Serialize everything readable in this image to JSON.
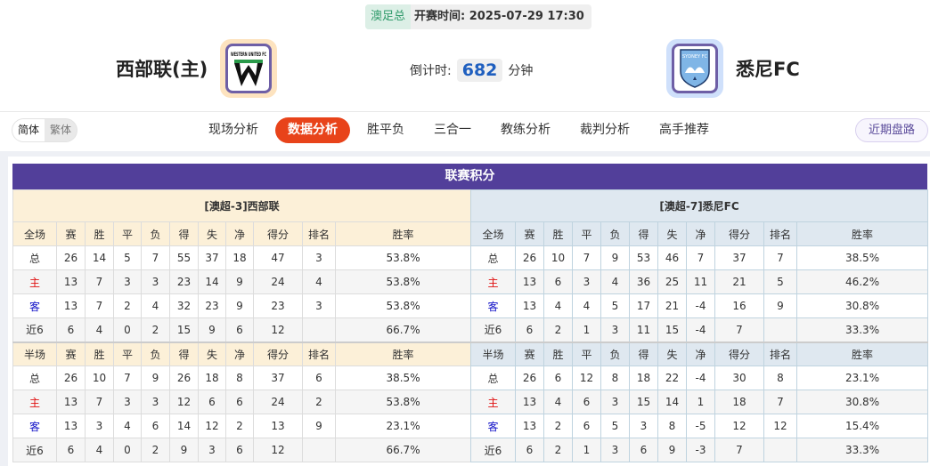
{
  "header": {
    "league": "澳足总",
    "kickoff_label": "开赛时间:",
    "kickoff": "2025-07-29 17:30",
    "home_team": "西部联(主)",
    "away_team": "悉尼FC",
    "countdown_label": "倒计时:",
    "countdown_value": "682",
    "countdown_unit": "分钟",
    "home_logo_text": "WESTERN UNITED FC",
    "away_logo_text": "SYDNEY FC"
  },
  "lang": {
    "simplified": "简体",
    "traditional": "繁体"
  },
  "nav": {
    "items": [
      "现场分析",
      "数据分析",
      "胜平负",
      "三合一",
      "教练分析",
      "裁判分析",
      "高手推荐"
    ],
    "active": "数据分析",
    "recent": "近期盘路"
  },
  "standings": {
    "title": "联赛积分",
    "columns": [
      "赛",
      "胜",
      "平",
      "负",
      "得",
      "失",
      "净",
      "得分",
      "排名",
      "胜率"
    ],
    "full_label": "全场",
    "half_label": "半场",
    "home": {
      "team": "[澳超-3]西部联",
      "full": [
        [
          "总",
          "26",
          "14",
          "5",
          "7",
          "55",
          "37",
          "18",
          "47",
          "3",
          "53.8%"
        ],
        [
          "主",
          "13",
          "7",
          "3",
          "3",
          "23",
          "14",
          "9",
          "24",
          "4",
          "53.8%"
        ],
        [
          "客",
          "13",
          "7",
          "2",
          "4",
          "32",
          "23",
          "9",
          "23",
          "3",
          "53.8%"
        ],
        [
          "近6",
          "6",
          "4",
          "0",
          "2",
          "15",
          "9",
          "6",
          "12",
          "",
          "66.7%"
        ]
      ],
      "half": [
        [
          "总",
          "26",
          "10",
          "7",
          "9",
          "26",
          "18",
          "8",
          "37",
          "6",
          "38.5%"
        ],
        [
          "主",
          "13",
          "7",
          "3",
          "3",
          "12",
          "6",
          "6",
          "24",
          "2",
          "53.8%"
        ],
        [
          "客",
          "13",
          "3",
          "4",
          "6",
          "14",
          "12",
          "2",
          "13",
          "9",
          "23.1%"
        ],
        [
          "近6",
          "6",
          "4",
          "0",
          "2",
          "9",
          "3",
          "6",
          "12",
          "",
          "66.7%"
        ]
      ]
    },
    "away": {
      "team": "[澳超-7]悉尼FC",
      "full": [
        [
          "总",
          "26",
          "10",
          "7",
          "9",
          "53",
          "46",
          "7",
          "37",
          "7",
          "38.5%"
        ],
        [
          "主",
          "13",
          "6",
          "3",
          "4",
          "36",
          "25",
          "11",
          "21",
          "5",
          "46.2%"
        ],
        [
          "客",
          "13",
          "4",
          "4",
          "5",
          "17",
          "21",
          "-4",
          "16",
          "9",
          "30.8%"
        ],
        [
          "近6",
          "6",
          "2",
          "1",
          "3",
          "11",
          "15",
          "-4",
          "7",
          "",
          "33.3%"
        ]
      ],
      "half": [
        [
          "总",
          "26",
          "6",
          "12",
          "8",
          "18",
          "22",
          "-4",
          "30",
          "8",
          "23.1%"
        ],
        [
          "主",
          "13",
          "4",
          "6",
          "3",
          "15",
          "14",
          "1",
          "18",
          "7",
          "30.8%"
        ],
        [
          "客",
          "13",
          "2",
          "6",
          "5",
          "3",
          "8",
          "-5",
          "12",
          "12",
          "15.4%"
        ],
        [
          "近6",
          "6",
          "2",
          "1",
          "3",
          "6",
          "9",
          "-3",
          "7",
          "",
          "33.3%"
        ]
      ]
    }
  },
  "colors": {
    "title_bg": "#523f9a",
    "active_tab": "#e8431a",
    "home_mark": "#e01010",
    "away_mark": "#1414c8"
  }
}
